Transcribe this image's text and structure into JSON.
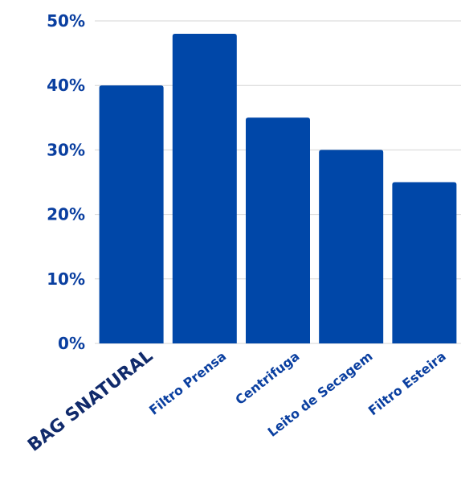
{
  "chart_data": {
    "type": "bar",
    "title": "",
    "xlabel": "",
    "ylabel": "",
    "categories": [
      "BAG SNATURAL",
      "Filtro Prensa",
      "Centrifuga",
      "Leito de Secagem",
      "Filtro Esteira"
    ],
    "values": [
      40,
      48,
      35,
      30,
      25
    ],
    "unit": "%",
    "ylim": [
      0,
      50
    ],
    "yticks": [
      0,
      10,
      20,
      30,
      40,
      50
    ],
    "ytick_labels": [
      "0%",
      "10%",
      "20%",
      "30%",
      "40%",
      "50%"
    ],
    "grid": true,
    "legend": "none",
    "emphasized_category": "BAG SNATURAL"
  },
  "colors": {
    "bar": "#0047a8",
    "tick_text": "#0a3fa0",
    "emphasized_text": "#102a6b",
    "grid": "#d6d6d6",
    "background": "#ffffff"
  }
}
